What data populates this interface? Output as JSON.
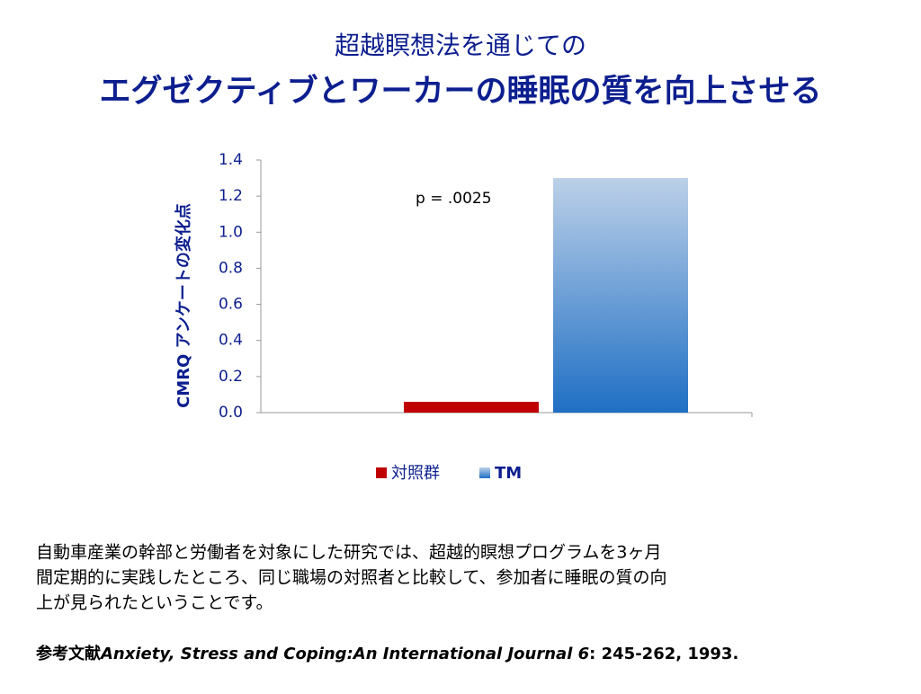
{
  "header": {
    "title_line1": "超越瞑想法を通じての",
    "title_line2": "エグゼクティブとワーカーの睡眠の質を向上させる"
  },
  "chart_data": {
    "type": "bar",
    "y_label": "CMRQ アンケートの変化点",
    "annotation": "p = .0025",
    "categories": [
      null
    ],
    "series": [
      {
        "name": "対照群",
        "color": "#c00000",
        "values": [
          0.06
        ]
      },
      {
        "name": "TM",
        "color": "#1f6fc4",
        "values": [
          1.3
        ]
      }
    ],
    "ylim": [
      0,
      1.4
    ],
    "yticks": [
      {
        "value": 0,
        "label": "0.0"
      },
      0.2,
      0.4,
      0.6,
      0.8,
      {
        "value": 1,
        "label": "1.0"
      },
      1.2,
      1.4
    ],
    "legend": "bottom"
  },
  "body": {
    "lines": [
      "自動車産業の幹部と労働者を対象にした研究では、超越的瞑想プログラムを3ヶ月",
      "間定期的に実践したところ、同じ職場の対照者と比較して、参加者に睡眠の質の向",
      "上が見られたということです。"
    ]
  },
  "reference": {
    "label": "参考文献",
    "journal": "Anxiety, Stress and Coping:An International Journal 6",
    "citation": ": 245-262, 1993."
  }
}
